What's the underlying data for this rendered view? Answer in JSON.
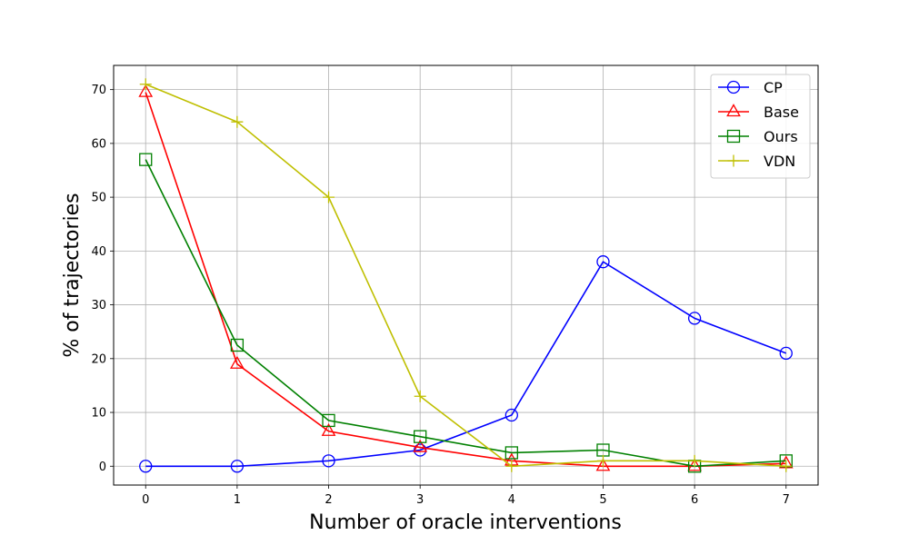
{
  "chart_data": {
    "type": "line",
    "title": "",
    "xlabel": "Number of oracle interventions",
    "ylabel": "% of trajectories",
    "x": [
      0,
      1,
      2,
      3,
      4,
      5,
      6,
      7
    ],
    "xlim": [
      -0.35,
      7.35
    ],
    "ylim": [
      -3.5,
      74.5
    ],
    "xticks": [
      "0",
      "1",
      "2",
      "3",
      "4",
      "5",
      "6",
      "7"
    ],
    "yticks": [
      "0",
      "10",
      "20",
      "30",
      "40",
      "50",
      "60",
      "70"
    ],
    "grid": true,
    "legend_position": "top-right",
    "series": [
      {
        "name": "CP",
        "color": "#0000ff",
        "marker": "circle",
        "values": [
          0,
          0,
          1,
          3,
          9.5,
          38,
          27.5,
          21
        ]
      },
      {
        "name": "Base",
        "color": "#ff0000",
        "marker": "triangle",
        "values": [
          69.5,
          19,
          6.5,
          3.5,
          1,
          0,
          0,
          0.5
        ]
      },
      {
        "name": "Ours",
        "color": "#008000",
        "marker": "square",
        "values": [
          57,
          22.5,
          8.5,
          5.5,
          2.5,
          3,
          0,
          1
        ]
      },
      {
        "name": "VDN",
        "color": "#bfbf00",
        "marker": "plus",
        "values": [
          71,
          64,
          50,
          13,
          0,
          1,
          1,
          0
        ]
      }
    ]
  }
}
